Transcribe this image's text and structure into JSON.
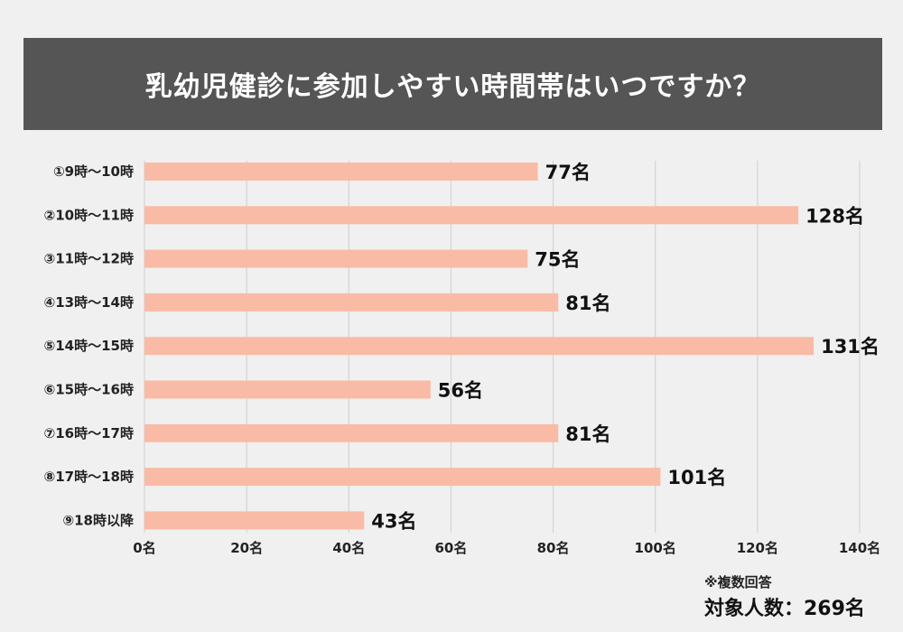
{
  "chart_data": {
    "type": "bar",
    "orientation": "horizontal",
    "title": "乳幼児健診に参加しやすい時間帯はいつですか？",
    "categories": [
      "①9時〜10時",
      "②10時〜11時",
      "③11時〜12時",
      "④13時〜14時",
      "⑤14時〜15時",
      "⑥15時〜16時",
      "⑦16時〜17時",
      "⑧17時〜18時",
      "⑨18時以降"
    ],
    "values": [
      77,
      128,
      75,
      81,
      131,
      56,
      81,
      101,
      43
    ],
    "value_labels": [
      "77名",
      "128名",
      "75名",
      "81名",
      "131名",
      "56名",
      "81名",
      "101名",
      "43名"
    ],
    "xlim": [
      0,
      140
    ],
    "x_ticks": [
      0,
      20,
      40,
      60,
      80,
      100,
      120,
      140
    ],
    "x_tick_labels": [
      "0名",
      "20名",
      "40名",
      "60名",
      "80名",
      "100名",
      "120名",
      "140名"
    ],
    "grid": "vertical",
    "bar_color": "#f9bba5",
    "gridline_color": "#cfcfcf"
  },
  "footnote": {
    "note": "※複数回答",
    "total": "対象人数：269名"
  },
  "colors": {
    "title_bg": "#555555",
    "title_text": "#ffffff",
    "background": "#f0f0f0"
  }
}
